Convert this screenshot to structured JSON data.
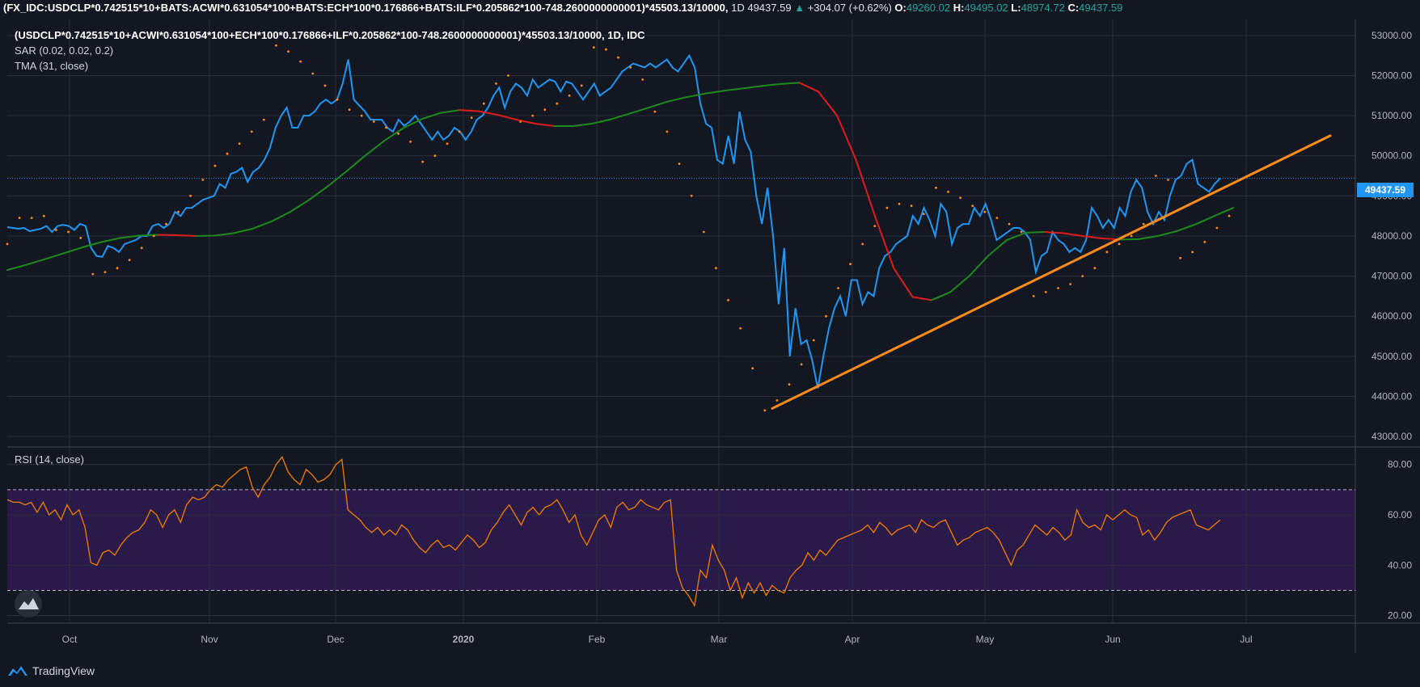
{
  "header": {
    "symbol": "(FX_IDC:USDCLP*0.742515*10+BATS:ACWI*0.631054*100+BATS:ECH*100*0.176866+BATS:ILF*0.205862*100-748.2600000000001)*45503.13/10000,",
    "interval": "1D",
    "last": "49437.59",
    "change": "+304.07 (+0.62%)",
    "open_label": "O:",
    "open": "49260.02",
    "high_label": "H:",
    "high": "49495.02",
    "low_label": "L:",
    "low": "48974.72",
    "close_label": "C:",
    "close": "49437.59"
  },
  "legend": {
    "series": "(USDCLP*0.742515*10+ACWI*0.631054*100+ECH*100*0.176866+ILF*0.205862*100-748.2600000000001)*45503.13/10000, 1D, IDC",
    "sar": "SAR (0.02, 0.02, 0.2)",
    "tma": "TMA (31, close)",
    "rsi": "RSI (14, close)"
  },
  "price_tag": "49437.59",
  "brand": "TradingView",
  "colors": {
    "background": "#131722",
    "grid": "#2a2e39",
    "price_line": "#2196f3",
    "sar": "#ff8c1a",
    "tma_up": "#1b8a1b",
    "tma_down": "#e01b1b",
    "trendline": "#ff8c1a",
    "rsi_line": "#f57c00",
    "rsi_band": "#2a1a4a",
    "axis_text": "#b2b5be"
  },
  "chart_data": [
    {
      "type": "line",
      "title": "(USDCLP*0.742515*10+ACWI*0.631054*100+ECH*100*0.176866+ILF*0.205862*100-748.2600000000001)*45503.13/10000, 1D, IDC",
      "x_ticks": [
        "Oct",
        "Nov",
        "Dec",
        "2020",
        "Feb",
        "Mar",
        "Apr",
        "May",
        "Jun",
        "Jul"
      ],
      "y_ticks": [
        "53000.00",
        "52000.00",
        "51000.00",
        "50000.00",
        "49000.00",
        "48000.00",
        "47000.00",
        "46000.00",
        "45000.00",
        "44000.00",
        "43000.00"
      ],
      "ylim": [
        42800,
        53400
      ],
      "series": [
        {
          "name": "(USDCLP*0.742515*10+ACWI*0.631054*100+ECH*100*0.176866+ILF*0.205862*100-748.2600000000001)*45503.13/10000",
          "values": [
            48220,
            48200,
            48180,
            48200,
            48120,
            48150,
            48180,
            48250,
            48100,
            48250,
            48280,
            48250,
            48150,
            48300,
            48250,
            47700,
            47500,
            47480,
            47750,
            47700,
            47600,
            47800,
            47850,
            47900,
            48000,
            48000,
            48250,
            48300,
            48200,
            48300,
            48600,
            48500,
            48700,
            48700,
            48800,
            48900,
            48950,
            49000,
            49300,
            49200,
            49550,
            49600,
            49700,
            49350,
            49600,
            49700,
            49900,
            50200,
            50700,
            51000,
            51200,
            50700,
            50700,
            51000,
            51000,
            51100,
            51300,
            51400,
            51300,
            51400,
            51800,
            52400,
            51400,
            51250,
            51100,
            50900,
            50900,
            50900,
            50700,
            50600,
            50900,
            50750,
            50850,
            51000,
            50800,
            50600,
            50400,
            50600,
            50400,
            50500,
            50700,
            50600,
            50400,
            50600,
            50900,
            51000,
            51200,
            51500,
            51700,
            51200,
            51600,
            51800,
            51700,
            51500,
            51900,
            51700,
            51800,
            51900,
            51850,
            51600,
            51850,
            51800,
            51600,
            51400,
            51600,
            51800,
            51500,
            51600,
            51700,
            51900,
            52100,
            52200,
            52300,
            52250,
            52200,
            52300,
            52200,
            52300,
            52400,
            52200,
            52100,
            52300,
            52500,
            52200,
            51300,
            50800,
            50700,
            49900,
            49800,
            50500,
            49800,
            51100,
            50400,
            50100,
            49000,
            48300,
            49200,
            48000,
            46300,
            47700,
            45000,
            46200,
            45300,
            45400,
            44900,
            44200,
            45000,
            45700,
            46200,
            46500,
            46000,
            46900,
            46900,
            46300,
            46600,
            46500,
            47200,
            47500,
            47600,
            47800,
            47900,
            48000,
            48500,
            48300,
            48700,
            48400,
            48000,
            48800,
            48600,
            47800,
            48200,
            48300,
            48300,
            48700,
            48500,
            48800,
            48400,
            47900,
            48000,
            48100,
            48200,
            48200,
            48100,
            47900,
            47100,
            47500,
            47600,
            48100,
            47900,
            47800,
            47600,
            47700,
            47600,
            47900,
            48700,
            48500,
            48200,
            48400,
            48200,
            48700,
            48500,
            49100,
            49400,
            49200,
            48600,
            48300,
            48600,
            48400,
            49000,
            49400,
            49500,
            49800,
            49900,
            49300,
            49200,
            49100,
            49300,
            49437.59
          ]
        },
        {
          "name": "TMA (31, close)",
          "values": [
            47150,
            47280,
            47420,
            47570,
            47720,
            47850,
            47950,
            48010,
            48030,
            48020,
            48000,
            48010,
            48070,
            48180,
            48360,
            48600,
            48900,
            49240,
            49620,
            50010,
            50380,
            50690,
            50920,
            51070,
            51140,
            51110,
            51020,
            50900,
            50800,
            50740,
            50740,
            50800,
            50910,
            51050,
            51200,
            51350,
            51460,
            51550,
            51620,
            51680,
            51740,
            51790,
            51820,
            51600,
            51000,
            49900,
            48500,
            47200,
            46480,
            46400,
            46600,
            47000,
            47500,
            47900,
            48080,
            48100,
            48070,
            48000,
            47940,
            47910,
            47920,
            48000,
            48120,
            48290,
            48500,
            48700
          ]
        },
        {
          "name": "SAR (0.02, 0.02, 0.2)",
          "values": [
            47800,
            48450,
            48450,
            48500,
            48150,
            48100,
            47950,
            47050,
            47100,
            47200,
            47400,
            47700,
            48000,
            48300,
            48600,
            49000,
            49400,
            49750,
            50050,
            50300,
            50600,
            50900,
            52750,
            52600,
            52350,
            52050,
            51750,
            51400,
            51150,
            51000,
            50850,
            50700,
            50550,
            50350,
            49850,
            50000,
            50300,
            50600,
            50950,
            51300,
            51800,
            52000,
            50850,
            51000,
            51150,
            51300,
            51500,
            51750,
            52700,
            52650,
            52450,
            52200,
            51900,
            51100,
            50600,
            49800,
            49000,
            48100,
            47200,
            46400,
            45700,
            44700,
            43650,
            43900,
            44300,
            44800,
            45400,
            46000,
            46700,
            47300,
            47800,
            48250,
            48700,
            48800,
            48750,
            48550,
            49200,
            49100,
            48950,
            48750,
            48600,
            48450,
            48300,
            48100,
            46500,
            46600,
            46700,
            46800,
            47000,
            47200,
            47600,
            47800,
            48000,
            48300,
            49500,
            49400,
            47450,
            47600,
            47850,
            48200,
            48500
          ]
        },
        {
          "name": "trend line",
          "values": [
            43700,
            50500
          ]
        }
      ]
    },
    {
      "type": "line",
      "title": "RSI (14, close)",
      "y_ticks": [
        "80.00",
        "60.00",
        "40.00",
        "20.00"
      ],
      "ylim": [
        17,
        86
      ],
      "bands": [
        30,
        70
      ],
      "series": [
        {
          "name": "RSI (14, close)",
          "values": [
            66,
            65,
            65,
            64,
            65,
            61,
            65,
            60,
            62,
            58,
            64,
            60,
            62,
            55,
            41,
            40,
            45,
            46,
            44,
            48,
            51,
            53,
            54,
            57,
            62,
            60,
            55,
            60,
            62,
            57,
            64,
            67,
            66,
            67,
            70,
            72,
            71,
            74,
            76,
            78,
            79,
            71,
            67,
            72,
            75,
            80,
            83,
            77,
            74,
            72,
            78,
            76,
            73,
            74,
            76,
            80,
            82,
            62,
            60,
            58,
            55,
            53,
            55,
            52,
            54,
            52,
            56,
            54,
            50,
            47,
            45,
            48,
            50,
            47,
            48,
            46,
            49,
            52,
            50,
            47,
            49,
            54,
            57,
            61,
            64,
            60,
            56,
            61,
            63,
            60,
            63,
            64,
            66,
            62,
            57,
            60,
            52,
            48,
            53,
            58,
            60,
            55,
            63,
            65,
            62,
            63,
            66,
            64,
            63,
            62,
            65,
            66,
            38,
            31,
            28,
            24,
            38,
            35,
            48,
            42,
            38,
            30,
            35,
            27,
            33,
            29,
            33,
            28,
            32,
            30,
            29,
            35,
            38,
            40,
            45,
            42,
            46,
            44,
            47,
            50,
            51,
            52,
            53,
            54,
            56,
            53,
            57,
            55,
            52,
            54,
            55,
            56,
            53,
            58,
            56,
            55,
            57,
            58,
            53,
            48,
            50,
            51,
            53,
            54,
            55,
            53,
            50,
            45,
            40,
            46,
            48,
            52,
            56,
            54,
            52,
            55,
            53,
            50,
            52,
            62,
            57,
            55,
            56,
            54,
            60,
            58,
            60,
            62,
            60,
            59,
            52,
            54,
            50,
            53,
            57,
            59,
            60,
            61,
            62,
            56,
            55,
            54,
            56,
            58
          ]
        }
      ]
    }
  ]
}
